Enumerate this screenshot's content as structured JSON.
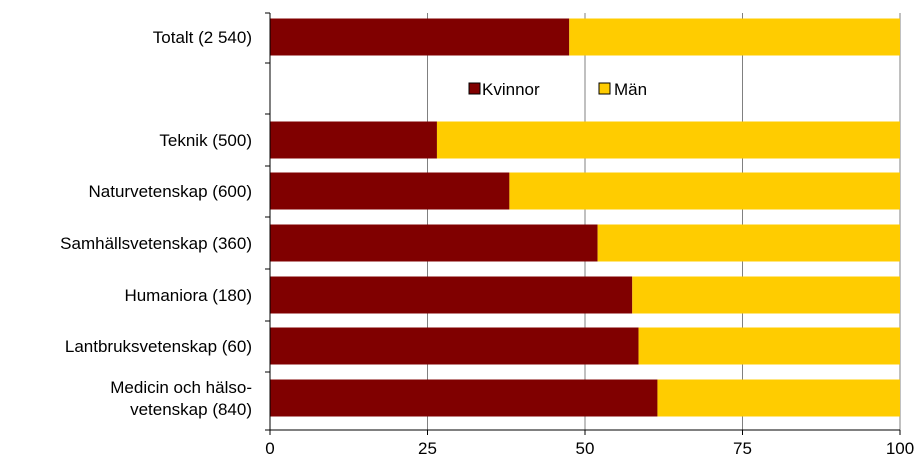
{
  "chart_data": {
    "type": "bar",
    "orientation": "horizontal",
    "stacked": true,
    "categories": [
      [
        "Totalt (2 540)"
      ],
      [
        "Teknik (500)"
      ],
      [
        "Naturvetenskap (600)"
      ],
      [
        "Samhällsvetenskap (360)"
      ],
      [
        "Humaniora (180)"
      ],
      [
        "Lantbruksvetenskap (60)"
      ],
      [
        "Medicin och hälso-",
        "vetenskap (840)"
      ]
    ],
    "series": [
      {
        "name": "Kvinnor",
        "color": "#800000",
        "values": [
          47.5,
          26.5,
          38,
          52,
          57.5,
          58.5,
          61.5
        ]
      },
      {
        "name": "Män",
        "color": "#FFCC00",
        "values": [
          52.5,
          73.5,
          62,
          48,
          42.5,
          41.5,
          38.5
        ]
      }
    ],
    "xlim": [
      0,
      100
    ],
    "xticks": [
      "0",
      "25",
      "50",
      "75",
      "100"
    ],
    "xtick_values": [
      0,
      25,
      50,
      75,
      100
    ],
    "grid": "vertical",
    "legend_position": "inside-top"
  }
}
